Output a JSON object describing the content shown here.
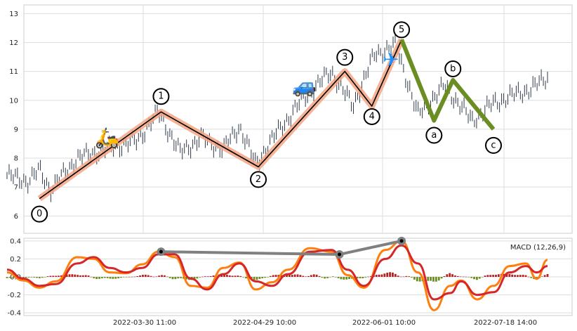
{
  "chart_data": [
    {
      "type": "line",
      "description_free": true,
      "y_ticks": [
        "6",
        "7",
        "8",
        "9",
        "10",
        "11",
        "12",
        "13"
      ],
      "ylim": [
        5.4,
        13.3
      ],
      "x_ticks": [
        "2022-03-30 11:00",
        "2022-04-29 10:00",
        "2022-06-01 10:00",
        "2022-07-18 14:00"
      ],
      "grid": true,
      "price_bars": {
        "x_range": [
          0,
          100
        ],
        "anchors": [
          {
            "x": 0,
            "y": 7.4
          },
          {
            "x": 4,
            "y": 7.2
          },
          {
            "x": 6,
            "y": 7.6
          },
          {
            "x": 8,
            "y": 6.9
          },
          {
            "x": 13,
            "y": 8.0
          },
          {
            "x": 18,
            "y": 8.3
          },
          {
            "x": 24,
            "y": 8.6
          },
          {
            "x": 28,
            "y": 9.6
          },
          {
            "x": 32,
            "y": 8.2
          },
          {
            "x": 36,
            "y": 8.7
          },
          {
            "x": 40,
            "y": 8.3
          },
          {
            "x": 43,
            "y": 9.1
          },
          {
            "x": 46,
            "y": 7.8
          },
          {
            "x": 50,
            "y": 8.9
          },
          {
            "x": 55,
            "y": 10.1
          },
          {
            "x": 60,
            "y": 11.0
          },
          {
            "x": 64,
            "y": 9.8
          },
          {
            "x": 68,
            "y": 11.6
          },
          {
            "x": 72,
            "y": 11.9
          },
          {
            "x": 76,
            "y": 9.5
          },
          {
            "x": 81,
            "y": 10.5
          },
          {
            "x": 86,
            "y": 9.3
          },
          {
            "x": 90,
            "y": 9.9
          },
          {
            "x": 94,
            "y": 10.2
          },
          {
            "x": 97,
            "y": 10.4
          },
          {
            "x": 100,
            "y": 10.8
          }
        ]
      },
      "impulse_wave": {
        "color": "#f4a582",
        "line_color": "#000000",
        "points": [
          {
            "label": "0",
            "x": 6,
            "y": 6.6
          },
          {
            "label": "1",
            "x": 28.5,
            "y": 9.6
          },
          {
            "label": "2",
            "x": 46.5,
            "y": 7.7
          },
          {
            "label": "3",
            "x": 62.5,
            "y": 11.0
          },
          {
            "label": "4",
            "x": 67.5,
            "y": 9.8
          },
          {
            "label": "5",
            "x": 73,
            "y": 12.1
          }
        ]
      },
      "corrective_wave": {
        "color": "#6b8e23",
        "points": [
          {
            "label": "5",
            "x": 73,
            "y": 12.1
          },
          {
            "label": "a",
            "x": 79,
            "y": 9.3
          },
          {
            "label": "b",
            "x": 82.5,
            "y": 10.7
          },
          {
            "label": "c",
            "x": 90,
            "y": 9.0
          }
        ]
      },
      "emojis": [
        {
          "name": "scooter-icon",
          "glyph": "🛵",
          "x": 18.5,
          "y": 8.7
        },
        {
          "name": "car-icon",
          "glyph": "🚙",
          "x": 55,
          "y": 10.5
        },
        {
          "name": "airplane-icon",
          "glyph": "✈",
          "x": 71,
          "y": 11.4
        }
      ]
    },
    {
      "type": "line",
      "legend": "MACD (12,26,9)",
      "y_ticks": [
        "-0.4",
        "-0.2",
        "0.0",
        "0.2",
        "0.4"
      ],
      "ylim": [
        -0.43,
        0.43
      ],
      "series": [
        {
          "color": "#ff7f0e",
          "points": [
            {
              "x": 0,
              "y": 0.05
            },
            {
              "x": 3,
              "y": -0.04
            },
            {
              "x": 6,
              "y": -0.12
            },
            {
              "x": 9,
              "y": -0.05
            },
            {
              "x": 13,
              "y": 0.22
            },
            {
              "x": 16,
              "y": 0.2
            },
            {
              "x": 19,
              "y": 0.05
            },
            {
              "x": 22,
              "y": 0.04
            },
            {
              "x": 25,
              "y": 0.14
            },
            {
              "x": 28,
              "y": 0.28
            },
            {
              "x": 31,
              "y": 0.22
            },
            {
              "x": 34,
              "y": -0.1
            },
            {
              "x": 37,
              "y": -0.12
            },
            {
              "x": 40,
              "y": 0.1
            },
            {
              "x": 43,
              "y": 0.16
            },
            {
              "x": 46,
              "y": -0.14
            },
            {
              "x": 49,
              "y": -0.06
            },
            {
              "x": 52,
              "y": 0.08
            },
            {
              "x": 56,
              "y": 0.32
            },
            {
              "x": 60,
              "y": 0.28
            },
            {
              "x": 63,
              "y": 0.02
            },
            {
              "x": 66,
              "y": -0.12
            },
            {
              "x": 70,
              "y": 0.3
            },
            {
              "x": 73,
              "y": 0.4
            },
            {
              "x": 76,
              "y": 0.05
            },
            {
              "x": 79,
              "y": -0.37
            },
            {
              "x": 82,
              "y": -0.1
            },
            {
              "x": 84,
              "y": -0.04
            },
            {
              "x": 87,
              "y": -0.25
            },
            {
              "x": 90,
              "y": -0.1
            },
            {
              "x": 93,
              "y": 0.12
            },
            {
              "x": 96,
              "y": 0.15
            },
            {
              "x": 98,
              "y": -0.02
            },
            {
              "x": 100,
              "y": 0.19
            }
          ]
        },
        {
          "color": "#d62728",
          "points": [
            {
              "x": 0,
              "y": 0.08
            },
            {
              "x": 3,
              "y": -0.02
            },
            {
              "x": 6,
              "y": -0.1
            },
            {
              "x": 9,
              "y": -0.08
            },
            {
              "x": 13,
              "y": 0.15
            },
            {
              "x": 16,
              "y": 0.22
            },
            {
              "x": 19,
              "y": 0.1
            },
            {
              "x": 22,
              "y": 0.05
            },
            {
              "x": 25,
              "y": 0.1
            },
            {
              "x": 28,
              "y": 0.25
            },
            {
              "x": 31,
              "y": 0.25
            },
            {
              "x": 34,
              "y": -0.02
            },
            {
              "x": 37,
              "y": -0.14
            },
            {
              "x": 40,
              "y": 0.03
            },
            {
              "x": 43,
              "y": 0.15
            },
            {
              "x": 46,
              "y": -0.05
            },
            {
              "x": 49,
              "y": -0.1
            },
            {
              "x": 52,
              "y": 0.03
            },
            {
              "x": 56,
              "y": 0.28
            },
            {
              "x": 60,
              "y": 0.3
            },
            {
              "x": 63,
              "y": 0.08
            },
            {
              "x": 66,
              "y": -0.1
            },
            {
              "x": 70,
              "y": 0.2
            },
            {
              "x": 73,
              "y": 0.35
            },
            {
              "x": 76,
              "y": 0.15
            },
            {
              "x": 79,
              "y": -0.25
            },
            {
              "x": 82,
              "y": -0.18
            },
            {
              "x": 84,
              "y": -0.05
            },
            {
              "x": 87,
              "y": -0.2
            },
            {
              "x": 90,
              "y": -0.17
            },
            {
              "x": 93,
              "y": 0.05
            },
            {
              "x": 96,
              "y": 0.12
            },
            {
              "x": 98,
              "y": 0.05
            },
            {
              "x": 100,
              "y": 0.12
            }
          ]
        }
      ],
      "histogram": {
        "pos_color": "#b22222",
        "neg_color": "#6b8e23"
      },
      "divergence": {
        "color": "#808080",
        "points": [
          {
            "x": 28.5,
            "y": 0.28
          },
          {
            "x": 61.5,
            "y": 0.25
          },
          {
            "x": 73,
            "y": 0.4
          }
        ]
      }
    }
  ]
}
